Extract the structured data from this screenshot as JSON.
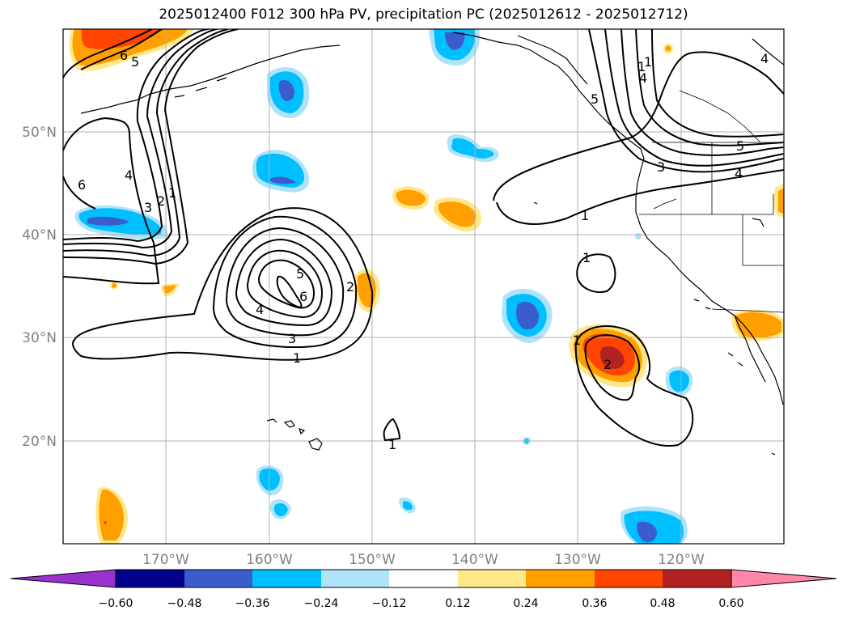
{
  "title": "2025012400 F012 300 hPa PV, precipitation PC (2025012612 - 2025012712)",
  "map": {
    "region": "North Pacific",
    "lat_range_deg": [
      10,
      60
    ],
    "lon_range_deg": [
      -180,
      -110
    ],
    "lat_labels": [
      "50°N",
      "40°N",
      "30°N",
      "20°N"
    ],
    "lon_labels": [
      "170°W",
      "160°W",
      "150°W",
      "140°W",
      "130°W",
      "120°W"
    ],
    "gridlines": true
  },
  "contours": {
    "field": "300 hPa PV",
    "line_color": "#000000",
    "labels": [
      "6",
      "5",
      "6",
      "4",
      "3",
      "2",
      "1",
      "5",
      "6",
      "4",
      "3",
      "2",
      "1",
      "1",
      "1",
      "2",
      "1",
      "1",
      "4",
      "4",
      "3",
      "5",
      "5",
      "4",
      "1",
      "1"
    ]
  },
  "colorbar": {
    "tick_labels": [
      "−0.60",
      "−0.48",
      "−0.36",
      "−0.24",
      "−0.12",
      "0.12",
      "0.24",
      "0.36",
      "0.48",
      "0.60"
    ],
    "colors": [
      "#9932cc",
      "#00008b",
      "#3a5ccc",
      "#00bfff",
      "#aee3fa",
      "#ffffff",
      "#ffe88a",
      "#ffa000",
      "#ff4500",
      "#b22222",
      "#ff88aa"
    ],
    "extend": "both"
  }
}
